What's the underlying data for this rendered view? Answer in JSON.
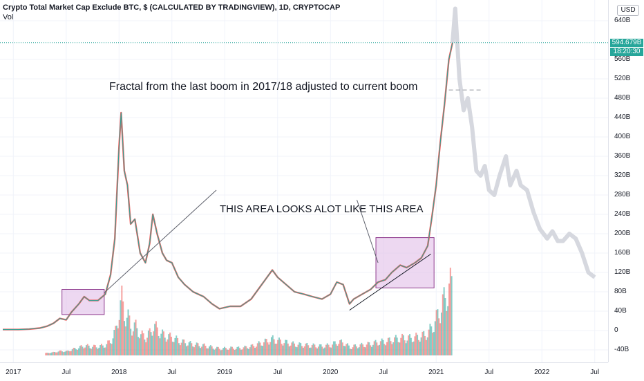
{
  "header": {
    "title": "Crypto Total Market Cap Exclude BTC, $ (CALCULATED BY TRADINGVIEW), 1D, CRYPTOCAP",
    "vol_label": "Vol"
  },
  "axis": {
    "currency": "USD",
    "price_label": "594.679B",
    "time_label": "18:20:30"
  },
  "annotations": {
    "fractal_text": "Fractal from the last boom in 2017/18 adjusted to current boom",
    "area_text": "THIS AREA LOOKS ALOT LIKE THIS AREA"
  },
  "colors": {
    "up": "#26a69a",
    "down": "#ef5350",
    "projection": "#d1d4dc",
    "box_fill": "#e1bee7",
    "box_stroke": "#8e3b8e",
    "price_tag": "#26a69a"
  },
  "chart_data": {
    "type": "line",
    "title": "Crypto Total Market Cap Exclude BTC, $ (CALCULATED BY TRADINGVIEW), 1D, CRYPTOCAP",
    "y_unit": "B",
    "ylim": [
      -60,
      680
    ],
    "y_ticks": [
      {
        "v": 640,
        "label": "640B"
      },
      {
        "v": 560,
        "label": "560B"
      },
      {
        "v": 520,
        "label": "520B"
      },
      {
        "v": 480,
        "label": "480B"
      },
      {
        "v": 440,
        "label": "440B"
      },
      {
        "v": 400,
        "label": "400B"
      },
      {
        "v": 360,
        "label": "360B"
      },
      {
        "v": 320,
        "label": "320B"
      },
      {
        "v": 280,
        "label": "280B"
      },
      {
        "v": 240,
        "label": "240B"
      },
      {
        "v": 200,
        "label": "200B"
      },
      {
        "v": 160,
        "label": "160B"
      },
      {
        "v": 120,
        "label": "120B"
      },
      {
        "v": 80,
        "label": "80B"
      },
      {
        "v": 40,
        "label": "40B"
      },
      {
        "v": 0,
        "label": "0"
      },
      {
        "v": -40,
        "label": "-40B"
      }
    ],
    "xlim": [
      2016.9,
      2022.6
    ],
    "x_ticks": [
      {
        "t": 2017.0,
        "label": "2017"
      },
      {
        "t": 2017.5,
        "label": "Jul"
      },
      {
        "t": 2018.0,
        "label": "2018"
      },
      {
        "t": 2018.5,
        "label": "Jul"
      },
      {
        "t": 2019.0,
        "label": "2019"
      },
      {
        "t": 2019.5,
        "label": "Jul"
      },
      {
        "t": 2020.0,
        "label": "2020"
      },
      {
        "t": 2020.5,
        "label": "Jul"
      },
      {
        "t": 2021.0,
        "label": "2021"
      },
      {
        "t": 2021.5,
        "label": "Jul"
      },
      {
        "t": 2022.0,
        "label": "2022"
      },
      {
        "t": 2022.5,
        "label": "Jul"
      }
    ],
    "current_price": 594.679,
    "series": [
      {
        "points": [
          [
            2016.9,
            2
          ],
          [
            2017.05,
            2
          ],
          [
            2017.15,
            3
          ],
          [
            2017.25,
            5
          ],
          [
            2017.32,
            9
          ],
          [
            2017.38,
            15
          ],
          [
            2017.44,
            25
          ],
          [
            2017.5,
            22
          ],
          [
            2017.55,
            38
          ],
          [
            2017.62,
            55
          ],
          [
            2017.67,
            70
          ],
          [
            2017.72,
            62
          ],
          [
            2017.8,
            62
          ],
          [
            2017.87,
            75
          ],
          [
            2017.92,
            115
          ],
          [
            2017.96,
            190
          ],
          [
            2018.0,
            380
          ],
          [
            2018.02,
            450
          ],
          [
            2018.05,
            330
          ],
          [
            2018.08,
            300
          ],
          [
            2018.11,
            220
          ],
          [
            2018.15,
            230
          ],
          [
            2018.2,
            160
          ],
          [
            2018.25,
            140
          ],
          [
            2018.29,
            180
          ],
          [
            2018.32,
            240
          ],
          [
            2018.36,
            200
          ],
          [
            2018.41,
            160
          ],
          [
            2018.45,
            145
          ],
          [
            2018.5,
            140
          ],
          [
            2018.56,
            110
          ],
          [
            2018.62,
            95
          ],
          [
            2018.7,
            80
          ],
          [
            2018.8,
            70
          ],
          [
            2018.88,
            55
          ],
          [
            2018.95,
            45
          ],
          [
            2019.05,
            50
          ],
          [
            2019.15,
            50
          ],
          [
            2019.25,
            65
          ],
          [
            2019.35,
            95
          ],
          [
            2019.45,
            125
          ],
          [
            2019.5,
            110
          ],
          [
            2019.58,
            95
          ],
          [
            2019.66,
            80
          ],
          [
            2019.75,
            75
          ],
          [
            2019.83,
            70
          ],
          [
            2019.92,
            65
          ],
          [
            2020.0,
            75
          ],
          [
            2020.06,
            100
          ],
          [
            2020.12,
            95
          ],
          [
            2020.18,
            55
          ],
          [
            2020.22,
            65
          ],
          [
            2020.3,
            75
          ],
          [
            2020.38,
            85
          ],
          [
            2020.45,
            100
          ],
          [
            2020.52,
            105
          ],
          [
            2020.58,
            120
          ],
          [
            2020.66,
            135
          ],
          [
            2020.72,
            130
          ],
          [
            2020.8,
            140
          ],
          [
            2020.86,
            150
          ],
          [
            2020.92,
            175
          ],
          [
            2020.96,
            235
          ],
          [
            2021.0,
            300
          ],
          [
            2021.04,
            390
          ],
          [
            2021.08,
            470
          ],
          [
            2021.12,
            560
          ],
          [
            2021.155,
            594.679
          ]
        ]
      },
      {
        "projection": true,
        "points": [
          [
            2021.155,
            594.679
          ],
          [
            2021.18,
            665
          ],
          [
            2021.22,
            520
          ],
          [
            2021.26,
            455
          ],
          [
            2021.3,
            480
          ],
          [
            2021.34,
            420
          ],
          [
            2021.38,
            330
          ],
          [
            2021.42,
            320
          ],
          [
            2021.46,
            340
          ],
          [
            2021.5,
            290
          ],
          [
            2021.55,
            280
          ],
          [
            2021.6,
            320
          ],
          [
            2021.66,
            360
          ],
          [
            2021.7,
            300
          ],
          [
            2021.76,
            330
          ],
          [
            2021.8,
            300
          ],
          [
            2021.86,
            290
          ],
          [
            2021.92,
            245
          ],
          [
            2021.98,
            210
          ],
          [
            2022.05,
            190
          ],
          [
            2022.1,
            205
          ],
          [
            2022.15,
            185
          ],
          [
            2022.2,
            185
          ],
          [
            2022.26,
            200
          ],
          [
            2022.32,
            190
          ],
          [
            2022.38,
            160
          ],
          [
            2022.44,
            120
          ],
          [
            2022.5,
            110
          ]
        ]
      }
    ]
  }
}
